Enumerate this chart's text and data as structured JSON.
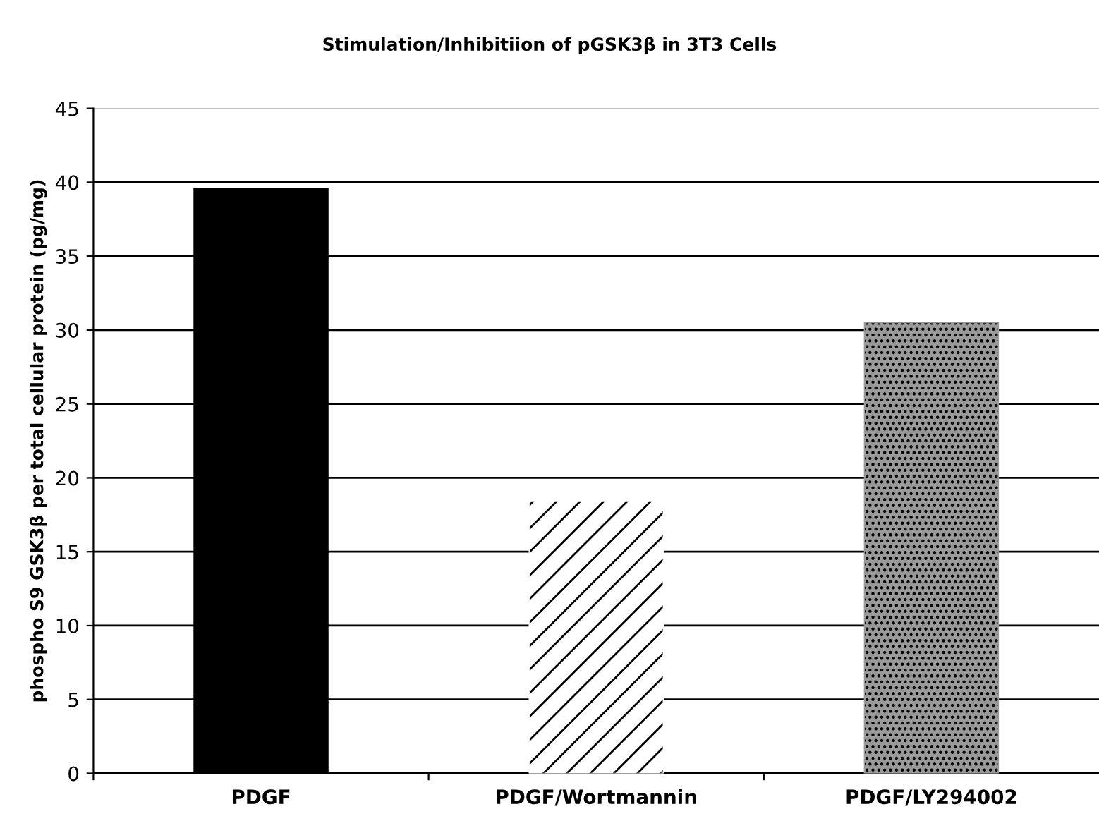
{
  "chart_data": {
    "type": "bar",
    "title": "Stimulation/Inhibitiion of pGSK3β in 3T3 Cells",
    "ylabel": "phospho S9 GSK3β per total cellular protein (pg/mg)",
    "categories": [
      "PDGF",
      "PDGF/Wortmannin",
      "PDGF/LY294002"
    ],
    "values": [
      39.6,
      18.4,
      30.5
    ],
    "colors": [
      "#000000",
      "#ffffff",
      "#9a9a9a"
    ],
    "ylim": [
      0,
      45
    ],
    "yticks": [
      0,
      5,
      10,
      15,
      20,
      25,
      30,
      35,
      40,
      45
    ],
    "grid": "y"
  }
}
